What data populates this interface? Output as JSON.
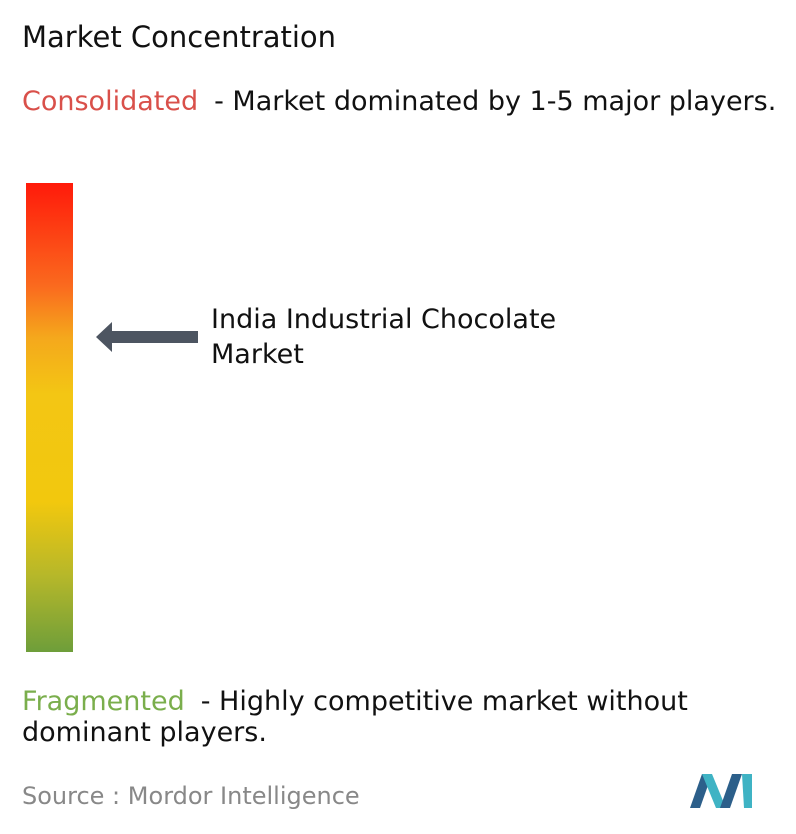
{
  "title": "Market Concentration",
  "consolidated": {
    "label": "Consolidated",
    "description": "- Market dominated by 1-5 major players."
  },
  "market": {
    "label": "India Industrial Chocolate Market"
  },
  "fragmented": {
    "label": "Fragmented",
    "description": "- Highly competitive market without dominant players."
  },
  "source": {
    "label": "Source :",
    "name": "Mordor Intelligence"
  }
}
